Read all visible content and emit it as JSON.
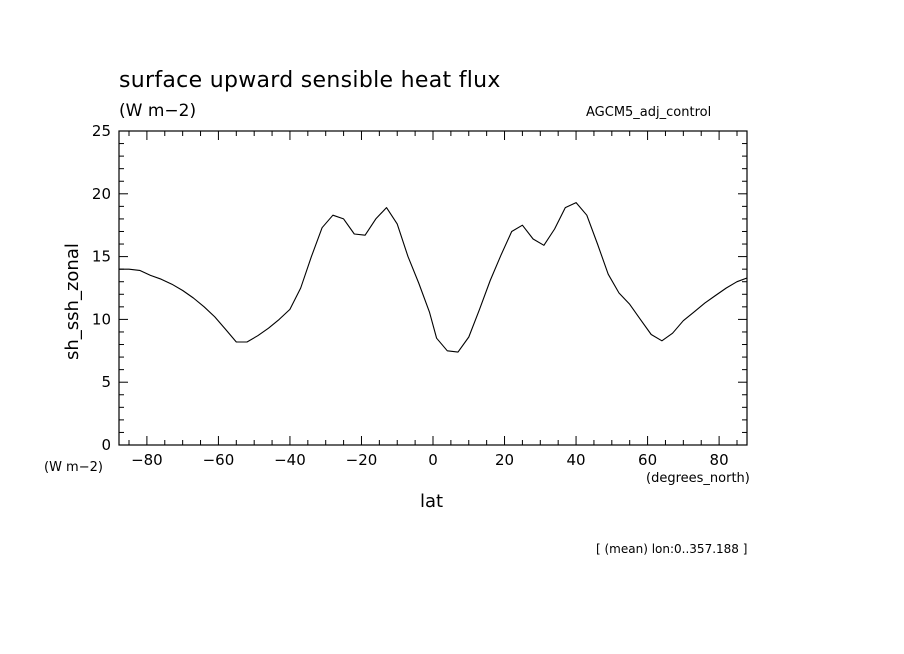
{
  "chart_data": {
    "type": "line",
    "title": "surface upward sensible heat flux",
    "subtitle": "(W m−2)",
    "run_label": "AGCM5_adj_control",
    "xlabel": "lat",
    "ylabel": "sh_ssh_zonal",
    "x_units": "(degrees_north)",
    "y_units": "(W m−2)",
    "footer": "[ (mean) lon:0..357.188 ]",
    "xlim": [
      -87.8,
      87.8
    ],
    "ylim": [
      0,
      25
    ],
    "grid": false,
    "x_ticks": [
      -80,
      -60,
      -40,
      -20,
      0,
      20,
      40,
      60,
      80
    ],
    "x_tick_labels": [
      "−80",
      "−60",
      "−40",
      "−20",
      "0",
      "20",
      "40",
      "60",
      "80"
    ],
    "y_ticks": [
      0,
      5,
      10,
      15,
      20,
      25
    ],
    "y_tick_labels": [
      "0",
      "5",
      "10",
      "15",
      "20",
      "25"
    ],
    "series": [
      {
        "x": [
          -87.8,
          -85,
          -82,
          -79,
          -76,
          -73,
          -70,
          -67,
          -64,
          -61,
          -58,
          -55,
          -52,
          -49,
          -46,
          -43,
          -40,
          -37,
          -34,
          -31,
          -28,
          -25,
          -22,
          -19,
          -16,
          -13,
          -10,
          -7,
          -4,
          -1,
          1,
          4,
          7,
          10,
          13,
          16,
          19,
          22,
          25,
          28,
          31,
          34,
          37,
          40,
          43,
          46,
          49,
          52,
          55,
          58,
          61,
          64,
          67,
          70,
          73,
          76,
          79,
          82,
          85,
          87.8
        ],
        "y": [
          14.0,
          14.0,
          13.9,
          13.5,
          13.2,
          12.8,
          12.3,
          11.7,
          11.0,
          10.2,
          9.2,
          8.2,
          8.2,
          8.7,
          9.3,
          10.0,
          10.8,
          12.5,
          15.0,
          17.3,
          18.3,
          18.0,
          16.8,
          16.7,
          18.0,
          18.9,
          17.6,
          15.0,
          12.9,
          10.6,
          8.5,
          7.5,
          7.4,
          8.6,
          10.8,
          13.1,
          15.1,
          17.0,
          17.5,
          16.4,
          15.9,
          17.2,
          18.9,
          19.3,
          18.3,
          16.0,
          13.6,
          12.1,
          11.2,
          10.0,
          8.8,
          8.3,
          8.9,
          9.9,
          10.6,
          11.3,
          11.9,
          12.5,
          13.0,
          13.3
        ]
      }
    ]
  }
}
